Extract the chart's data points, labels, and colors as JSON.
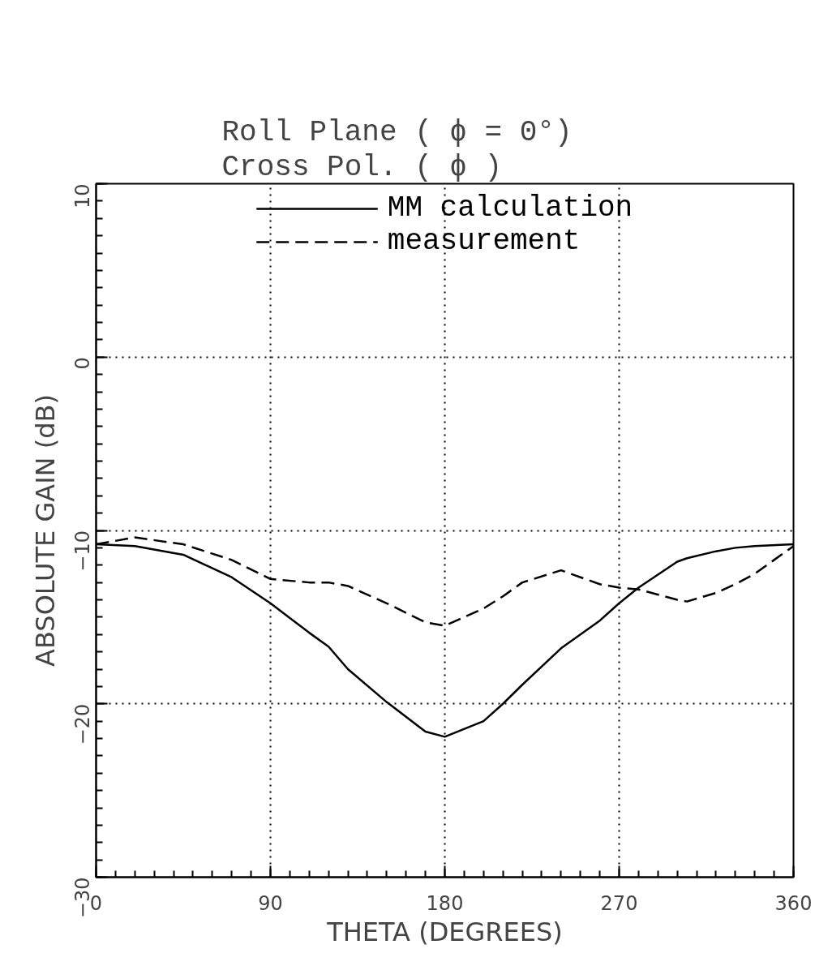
{
  "chart_data": {
    "type": "line",
    "title": "Roll Plane ( ϕ = 0°)",
    "subtitle": "Cross Pol. ( ϕ )",
    "xlabel": "THETA (DEGREES)",
    "ylabel": "ABSOLUTE GAIN (dB)",
    "x": [
      0,
      20,
      45,
      70,
      90,
      110,
      120,
      130,
      150,
      170,
      180,
      200,
      210,
      220,
      240,
      260,
      270,
      280,
      300,
      305,
      320,
      330,
      340,
      360
    ],
    "series": [
      {
        "name": "MM calculation",
        "color": "#000000",
        "line_style": "solid",
        "values": [
          -10.8,
          -10.9,
          -11.4,
          -12.7,
          -14.2,
          -15.9,
          -16.7,
          -18.0,
          -19.9,
          -21.6,
          -21.9,
          -21.0,
          -20.0,
          -18.9,
          -16.8,
          -15.2,
          -14.2,
          -13.3,
          -11.8,
          -11.6,
          -11.2,
          -11.0,
          -10.9,
          -10.8
        ]
      },
      {
        "name": "measurement",
        "color": "#000000",
        "line_style": "dashed",
        "values": [
          -10.8,
          -10.4,
          -10.8,
          -11.7,
          -12.8,
          -13.0,
          -13.0,
          -13.2,
          -14.2,
          -15.3,
          -15.5,
          -14.5,
          -13.8,
          -13.0,
          -12.3,
          -13.1,
          -13.3,
          -13.4,
          -14.0,
          -14.1,
          -13.6,
          -13.1,
          -12.5,
          -10.9
        ]
      }
    ],
    "xlim": [
      0,
      360
    ],
    "xticks": [
      0,
      90,
      180,
      270,
      360
    ],
    "ylim": [
      -30,
      10
    ],
    "yticks": [
      -30,
      -20,
      -10,
      0,
      10
    ],
    "grid": true,
    "legend": "top",
    "marker": "none"
  }
}
